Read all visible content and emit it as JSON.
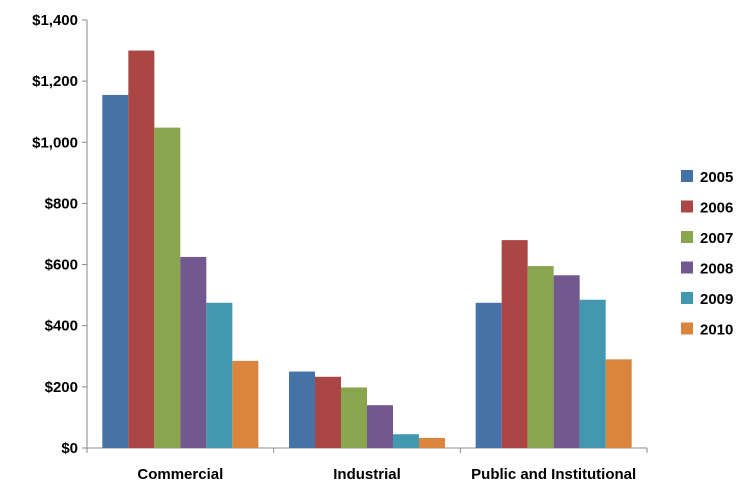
{
  "chart_data": {
    "type": "bar",
    "title": "",
    "xlabel": "",
    "ylabel": "",
    "categories": [
      "Commercial",
      "Industrial",
      "Public and Institutional"
    ],
    "series": [
      {
        "name": "2005",
        "color": "#4572A7",
        "values": [
          1155,
          250,
          475
        ]
      },
      {
        "name": "2006",
        "color": "#AA4643",
        "values": [
          1300,
          233,
          680
        ]
      },
      {
        "name": "2007",
        "color": "#89A54E",
        "values": [
          1048,
          198,
          595
        ]
      },
      {
        "name": "2008",
        "color": "#71588F",
        "values": [
          625,
          140,
          565
        ]
      },
      {
        "name": "2009",
        "color": "#4198AF",
        "values": [
          475,
          45,
          485
        ]
      },
      {
        "name": "2010",
        "color": "#DB843D",
        "values": [
          285,
          33,
          290
        ]
      }
    ],
    "ylim": [
      0,
      1400
    ],
    "yticks": [
      0,
      200,
      400,
      600,
      800,
      1000,
      1200,
      1400
    ],
    "ytick_labels": [
      "$0",
      "$200",
      "$400",
      "$600",
      "$800",
      "$1,000",
      "$1,200",
      "$1,400"
    ],
    "grid": false,
    "legend_position": "right"
  }
}
